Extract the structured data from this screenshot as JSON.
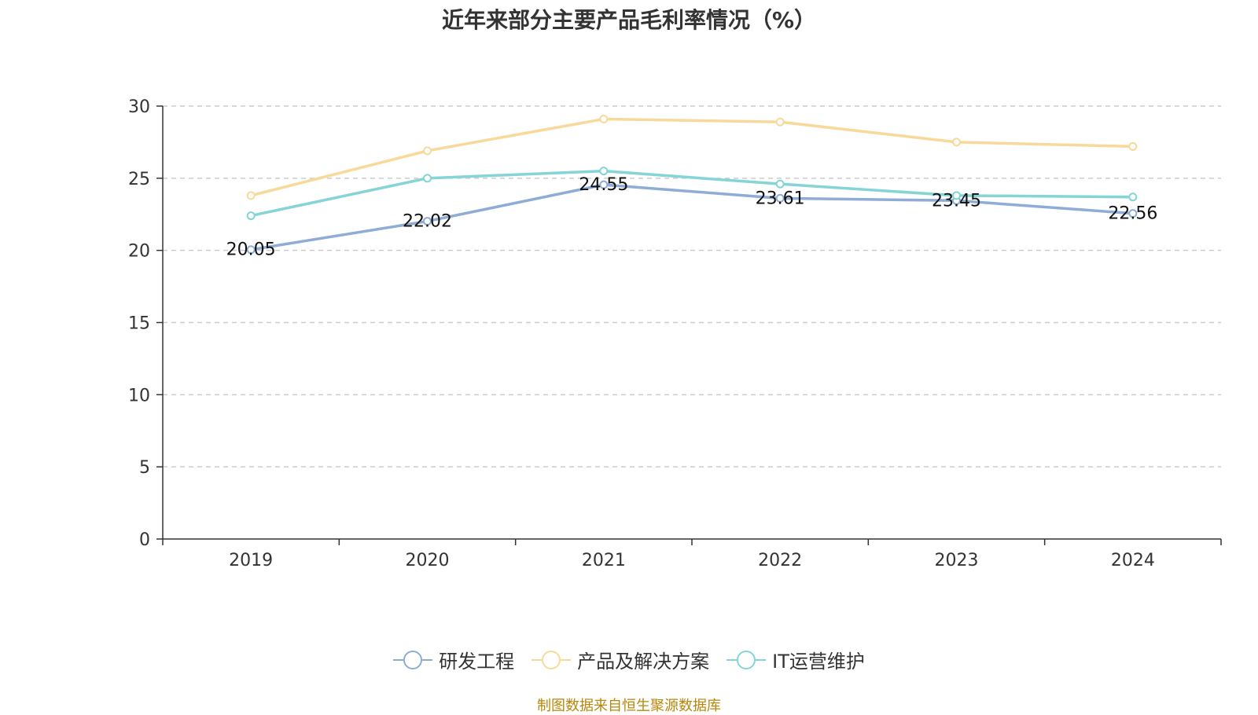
{
  "title": "近年来部分主要产品毛利率情况（%）",
  "footer": "制图数据来自恒生聚源数据库",
  "colors": {
    "研发工程": "#8eacd6",
    "产品及解决方案": "#f8d99a",
    "IT运营维护": "#85d4d6",
    "grid": "#cccccc",
    "axis": "#333333"
  },
  "chart_data": {
    "type": "line",
    "title": "近年来部分主要产品毛利率情况（%）",
    "categories": [
      "2019",
      "2020",
      "2021",
      "2022",
      "2023",
      "2024"
    ],
    "ylim": [
      0,
      30
    ],
    "yticks": [
      0,
      5,
      10,
      15,
      20,
      25,
      30
    ],
    "grid": "horizontal dashed",
    "legend_position": "bottom",
    "series": [
      {
        "name": "研发工程",
        "values": [
          20.05,
          22.02,
          24.55,
          23.61,
          23.45,
          22.56
        ],
        "data_labels": [
          "20.05",
          "22.02",
          "24.55",
          "23.61",
          "23.45",
          "22.56"
        ]
      },
      {
        "name": "产品及解决方案",
        "values": [
          23.8,
          26.9,
          29.1,
          28.9,
          27.5,
          27.2
        ]
      },
      {
        "name": "IT运营维护",
        "values": [
          22.4,
          25.0,
          25.5,
          24.6,
          23.8,
          23.7
        ]
      }
    ]
  }
}
